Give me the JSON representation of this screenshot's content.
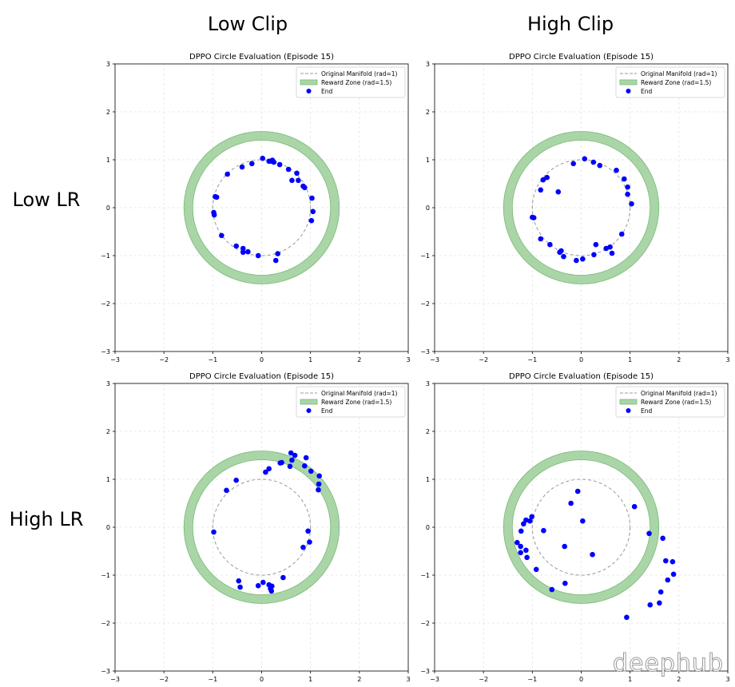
{
  "column_titles": [
    "Low Clip",
    "High Clip"
  ],
  "row_titles": [
    "Low LR",
    "High LR"
  ],
  "watermark": "deephub",
  "colors": {
    "points": "#0000ff",
    "reward_zone": "#8cc78a",
    "manifold": "#999999"
  },
  "chart_data": [
    {
      "type": "scatter",
      "title": "DPPO Circle Evaluation (Episode 15)",
      "xlim": [
        -3,
        3
      ],
      "ylim": [
        -3,
        3
      ],
      "xticks": [
        -3,
        -2,
        -1,
        0,
        1,
        2,
        3
      ],
      "yticks": [
        -3,
        -2,
        -1,
        0,
        1,
        2,
        3
      ],
      "grid": true,
      "legend_position": "top-right",
      "legend": [
        "Original Manifold (rad=1)",
        "Reward Zone (rad=1.5)",
        "End"
      ],
      "manifold_radius": 1,
      "reward_radius": 1.5,
      "points": [
        [
          0.02,
          1.03
        ],
        [
          0.15,
          0.97
        ],
        [
          0.22,
          0.99
        ],
        [
          0.25,
          0.95
        ],
        [
          0.2,
          0.97
        ],
        [
          0.37,
          0.9
        ],
        [
          0.55,
          0.8
        ],
        [
          0.72,
          0.72
        ],
        [
          0.75,
          0.57
        ],
        [
          0.62,
          0.57
        ],
        [
          0.85,
          0.45
        ],
        [
          0.88,
          0.42
        ],
        [
          1.03,
          0.2
        ],
        [
          1.05,
          -0.08
        ],
        [
          1.02,
          -0.27
        ],
        [
          -0.95,
          0.23
        ],
        [
          -0.92,
          0.22
        ],
        [
          -0.98,
          -0.1
        ],
        [
          -0.97,
          -0.15
        ],
        [
          -0.82,
          -0.58
        ],
        [
          -0.52,
          -0.8
        ],
        [
          -0.38,
          -0.85
        ],
        [
          -0.38,
          -0.93
        ],
        [
          -0.28,
          -0.92
        ],
        [
          -0.07,
          -1.0
        ],
        [
          0.33,
          -0.96
        ],
        [
          0.29,
          -1.1
        ],
        [
          -0.4,
          0.85
        ],
        [
          -0.2,
          0.92
        ],
        [
          -0.7,
          0.7
        ]
      ]
    },
    {
      "type": "scatter",
      "title": "DPPO Circle Evaluation (Episode 15)",
      "xlim": [
        -3,
        3
      ],
      "ylim": [
        -3,
        3
      ],
      "xticks": [
        -3,
        -2,
        -1,
        0,
        1,
        2,
        3
      ],
      "yticks": [
        -3,
        -2,
        -1,
        0,
        1,
        2,
        3
      ],
      "grid": true,
      "legend_position": "top-right",
      "legend": [
        "Original Manifold (rad=1)",
        "Reward Zone (rad=1.5)",
        "End"
      ],
      "manifold_radius": 1,
      "reward_radius": 1.5,
      "points": [
        [
          0.07,
          1.02
        ],
        [
          -0.16,
          0.92
        ],
        [
          0.25,
          0.95
        ],
        [
          0.38,
          0.88
        ],
        [
          0.72,
          0.78
        ],
        [
          0.88,
          0.6
        ],
        [
          0.95,
          0.43
        ],
        [
          0.95,
          0.28
        ],
        [
          1.03,
          0.08
        ],
        [
          -0.7,
          0.63
        ],
        [
          -0.78,
          0.58
        ],
        [
          -0.83,
          0.37
        ],
        [
          -0.47,
          0.33
        ],
        [
          -1.0,
          -0.2
        ],
        [
          -0.97,
          -0.21
        ],
        [
          -0.83,
          -0.65
        ],
        [
          -0.64,
          -0.77
        ],
        [
          -0.41,
          -0.9
        ],
        [
          -0.44,
          -0.93
        ],
        [
          -0.36,
          -1.02
        ],
        [
          -0.1,
          -1.1
        ],
        [
          0.03,
          -1.07
        ],
        [
          0.26,
          -0.98
        ],
        [
          0.3,
          -0.77
        ],
        [
          0.51,
          -0.85
        ],
        [
          0.59,
          -0.82
        ],
        [
          0.63,
          -0.95
        ],
        [
          0.83,
          -0.55
        ]
      ]
    },
    {
      "type": "scatter",
      "title": "DPPO Circle Evaluation (Episode 15)",
      "xlim": [
        -3,
        3
      ],
      "ylim": [
        -3,
        3
      ],
      "xticks": [
        -3,
        -2,
        -1,
        0,
        1,
        2,
        3
      ],
      "yticks": [
        -3,
        -2,
        -1,
        0,
        1,
        2,
        3
      ],
      "grid": true,
      "legend_position": "top-right",
      "legend": [
        "Original Manifold (rad=1)",
        "Reward Zone (rad=1.5)",
        "End"
      ],
      "manifold_radius": 1,
      "reward_radius": 1.5,
      "points": [
        [
          0.6,
          1.55
        ],
        [
          0.68,
          1.5
        ],
        [
          0.62,
          1.4
        ],
        [
          0.91,
          1.45
        ],
        [
          0.41,
          1.35
        ],
        [
          0.38,
          1.34
        ],
        [
          0.58,
          1.27
        ],
        [
          0.88,
          1.28
        ],
        [
          1.01,
          1.17
        ],
        [
          1.18,
          1.07
        ],
        [
          1.17,
          0.9
        ],
        [
          1.16,
          0.78
        ],
        [
          0.15,
          1.22
        ],
        [
          0.08,
          1.15
        ],
        [
          -0.52,
          0.98
        ],
        [
          -0.72,
          0.77
        ],
        [
          -0.98,
          -0.1
        ],
        [
          0.95,
          -0.08
        ],
        [
          0.98,
          -0.31
        ],
        [
          0.85,
          -0.42
        ],
        [
          0.44,
          -1.05
        ],
        [
          -0.47,
          -1.12
        ],
        [
          -0.44,
          -1.25
        ],
        [
          -0.07,
          -1.22
        ],
        [
          0.03,
          -1.15
        ],
        [
          0.15,
          -1.2
        ],
        [
          0.21,
          -1.23
        ],
        [
          0.18,
          -1.28
        ],
        [
          0.2,
          -1.33
        ]
      ]
    },
    {
      "type": "scatter",
      "title": "DPPO Circle Evaluation (Episode 15)",
      "xlim": [
        -3,
        3
      ],
      "ylim": [
        -3,
        3
      ],
      "xticks": [
        -3,
        -2,
        -1,
        0,
        1,
        2,
        3
      ],
      "yticks": [
        -3,
        -2,
        -1,
        0,
        1,
        2,
        3
      ],
      "grid": true,
      "legend_position": "top-right",
      "legend": [
        "Original Manifold (rad=1)",
        "Reward Zone (rad=1.5)",
        "End"
      ],
      "manifold_radius": 1,
      "reward_radius": 1.5,
      "points": [
        [
          -0.07,
          0.75
        ],
        [
          -0.21,
          0.5
        ],
        [
          0.03,
          0.13
        ],
        [
          1.09,
          0.43
        ],
        [
          -1.01,
          0.22
        ],
        [
          -1.13,
          0.15
        ],
        [
          -1.05,
          0.13
        ],
        [
          -1.18,
          0.07
        ],
        [
          -0.77,
          -0.07
        ],
        [
          -1.23,
          -0.08
        ],
        [
          -1.31,
          -0.32
        ],
        [
          -1.24,
          -0.4
        ],
        [
          -1.13,
          -0.48
        ],
        [
          -1.24,
          -0.53
        ],
        [
          -1.11,
          -0.63
        ],
        [
          -0.34,
          -0.4
        ],
        [
          0.23,
          -0.57
        ],
        [
          -0.92,
          -0.88
        ],
        [
          -0.33,
          -1.17
        ],
        [
          -0.6,
          -1.3
        ],
        [
          1.39,
          -0.13
        ],
        [
          1.67,
          -0.23
        ],
        [
          1.73,
          -0.7
        ],
        [
          1.87,
          -0.72
        ],
        [
          1.89,
          -0.98
        ],
        [
          1.77,
          -1.1
        ],
        [
          1.63,
          -1.35
        ],
        [
          1.6,
          -1.58
        ],
        [
          1.41,
          -1.62
        ],
        [
          0.93,
          -1.88
        ]
      ]
    }
  ]
}
